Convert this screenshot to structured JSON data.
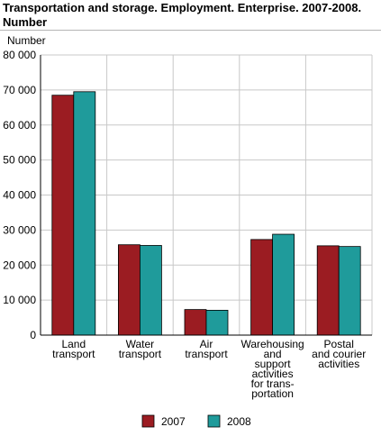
{
  "chart_data": {
    "type": "bar",
    "title_line1": "Transportation and storage. Employment. Enterprise. 2007-2008.",
    "title_line2": "Number",
    "ylabel": "Number",
    "xlabel": "",
    "ylim": [
      0,
      80000
    ],
    "yticks": [
      0,
      10000,
      20000,
      30000,
      40000,
      50000,
      60000,
      70000,
      80000
    ],
    "ytick_labels": [
      "0",
      "10 000",
      "20 000",
      "30 000",
      "40 000",
      "50 000",
      "60 000",
      "70 000",
      "80 000"
    ],
    "categories": [
      [
        "Land",
        "transport"
      ],
      [
        "Water",
        "transport"
      ],
      [
        "Air",
        "transport"
      ],
      [
        "Warehousing",
        "and",
        "support",
        "activities",
        "for trans-",
        "portation"
      ],
      [
        "Postal",
        "and courier",
        "activities"
      ]
    ],
    "series": [
      {
        "name": "2007",
        "color": "#9b1c22",
        "values": [
          68500,
          25800,
          7300,
          27300,
          25500
        ]
      },
      {
        "name": "2008",
        "color": "#1f9b9b",
        "values": [
          69500,
          25600,
          7100,
          28800,
          25300
        ]
      }
    ],
    "grid": true,
    "legend_position": "bottom"
  }
}
